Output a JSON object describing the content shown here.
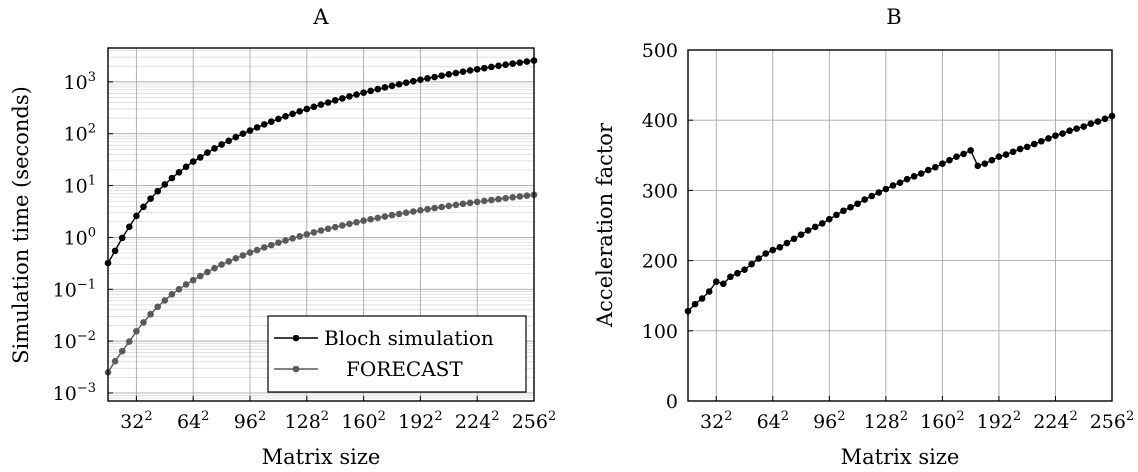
{
  "chart_data": [
    {
      "type": "line",
      "title": "A",
      "xlabel": "Matrix size",
      "ylabel": "Simulation time (seconds)",
      "yscale": "log",
      "ylim": [
        0.0007,
        4500
      ],
      "xlim": [
        16,
        256
      ],
      "grid": true,
      "legend_position": "bottom-right",
      "x_ticks": [
        {
          "value": 32,
          "base": "32",
          "exp": "2"
        },
        {
          "value": 64,
          "base": "64",
          "exp": "2"
        },
        {
          "value": 96,
          "base": "96",
          "exp": "2"
        },
        {
          "value": 128,
          "base": "128",
          "exp": "2"
        },
        {
          "value": 160,
          "base": "160",
          "exp": "2"
        },
        {
          "value": 192,
          "base": "192",
          "exp": "2"
        },
        {
          "value": 224,
          "base": "224",
          "exp": "2"
        },
        {
          "value": 256,
          "base": "256",
          "exp": "2"
        }
      ],
      "y_ticks": [
        {
          "value": 0.001,
          "base": "10",
          "exp": "−3"
        },
        {
          "value": 0.01,
          "base": "10",
          "exp": "−2"
        },
        {
          "value": 0.1,
          "base": "10",
          "exp": "−1"
        },
        {
          "value": 1,
          "base": "10",
          "exp": "0"
        },
        {
          "value": 10,
          "base": "10",
          "exp": "1"
        },
        {
          "value": 100,
          "base": "10",
          "exp": "2"
        },
        {
          "value": 1000,
          "base": "10",
          "exp": "3"
        }
      ],
      "series": [
        {
          "name": "Bloch simulation",
          "color": "#000000",
          "x": [
            16,
            20,
            24,
            28,
            32,
            36,
            40,
            44,
            48,
            52,
            56,
            60,
            64,
            68,
            72,
            76,
            80,
            84,
            88,
            92,
            96,
            100,
            104,
            108,
            112,
            116,
            120,
            124,
            128,
            132,
            136,
            140,
            144,
            148,
            152,
            156,
            160,
            164,
            168,
            172,
            176,
            180,
            184,
            188,
            192,
            196,
            200,
            204,
            208,
            212,
            216,
            220,
            224,
            228,
            232,
            236,
            240,
            244,
            248,
            252,
            256
          ],
          "y": [
            0.32,
            0.55,
            0.98,
            1.6,
            2.6,
            3.9,
            5.6,
            7.8,
            10.5,
            14,
            18,
            23,
            29,
            35,
            43,
            52,
            62,
            73,
            86,
            100,
            115,
            132,
            151,
            171,
            193,
            217,
            242,
            270,
            300,
            330,
            365,
            400,
            440,
            480,
            525,
            570,
            620,
            670,
            725,
            780,
            840,
            900,
            965,
            1030,
            1100,
            1170,
            1240,
            1320,
            1400,
            1480,
            1570,
            1660,
            1750,
            1840,
            1940,
            2040,
            2140,
            2250,
            2350,
            2460,
            2580
          ]
        },
        {
          "name": "FORECAST",
          "color": "#5a5a5a",
          "x": [
            16,
            20,
            24,
            28,
            32,
            36,
            40,
            44,
            48,
            52,
            56,
            60,
            64,
            68,
            72,
            76,
            80,
            84,
            88,
            92,
            96,
            100,
            104,
            108,
            112,
            116,
            120,
            124,
            128,
            132,
            136,
            140,
            144,
            148,
            152,
            156,
            160,
            164,
            168,
            172,
            176,
            180,
            184,
            188,
            192,
            196,
            200,
            204,
            208,
            212,
            216,
            220,
            224,
            228,
            232,
            236,
            240,
            244,
            248,
            252,
            256
          ],
          "y": [
            0.0025,
            0.0041,
            0.0064,
            0.0098,
            0.0155,
            0.023,
            0.033,
            0.046,
            0.061,
            0.08,
            0.1,
            0.124,
            0.15,
            0.18,
            0.215,
            0.255,
            0.3,
            0.345,
            0.395,
            0.45,
            0.51,
            0.57,
            0.64,
            0.71,
            0.79,
            0.87,
            0.96,
            1.05,
            1.15,
            1.25,
            1.36,
            1.47,
            1.58,
            1.7,
            1.83,
            1.96,
            2.1,
            2.24,
            2.38,
            2.53,
            2.68,
            2.84,
            3,
            3.16,
            3.33,
            3.5,
            3.68,
            3.86,
            4.05,
            4.24,
            4.44,
            4.64,
            4.84,
            5.05,
            5.26,
            5.48,
            5.7,
            5.93,
            6.16,
            6.4,
            6.65
          ]
        }
      ]
    },
    {
      "type": "line",
      "title": "B",
      "xlabel": "Matrix size",
      "ylabel": "Acceleration factor",
      "yscale": "linear",
      "ylim": [
        0,
        500
      ],
      "xlim": [
        16,
        256
      ],
      "grid": true,
      "x_ticks": [
        {
          "value": 32,
          "base": "32",
          "exp": "2"
        },
        {
          "value": 64,
          "base": "64",
          "exp": "2"
        },
        {
          "value": 96,
          "base": "96",
          "exp": "2"
        },
        {
          "value": 128,
          "base": "128",
          "exp": "2"
        },
        {
          "value": 160,
          "base": "160",
          "exp": "2"
        },
        {
          "value": 192,
          "base": "192",
          "exp": "2"
        },
        {
          "value": 224,
          "base": "224",
          "exp": "2"
        },
        {
          "value": 256,
          "base": "256",
          "exp": "2"
        }
      ],
      "y_ticks": [
        {
          "value": 0,
          "label": "0"
        },
        {
          "value": 100,
          "label": "100"
        },
        {
          "value": 200,
          "label": "200"
        },
        {
          "value": 300,
          "label": "300"
        },
        {
          "value": 400,
          "label": "400"
        },
        {
          "value": 500,
          "label": "500"
        }
      ],
      "series": [
        {
          "color": "#000000",
          "x": [
            16,
            20,
            24,
            28,
            32,
            36,
            40,
            44,
            48,
            52,
            56,
            60,
            64,
            68,
            72,
            76,
            80,
            84,
            88,
            92,
            96,
            100,
            104,
            108,
            112,
            116,
            120,
            124,
            128,
            132,
            136,
            140,
            144,
            148,
            152,
            156,
            160,
            164,
            168,
            172,
            176,
            180,
            184,
            188,
            192,
            196,
            200,
            204,
            208,
            212,
            216,
            220,
            224,
            228,
            232,
            236,
            240,
            244,
            248,
            252,
            256
          ],
          "y": [
            128,
            138,
            146,
            156,
            170,
            167,
            177,
            182,
            187,
            195,
            203,
            210,
            215,
            219,
            225,
            231,
            237,
            243,
            248,
            253,
            259,
            265,
            271,
            276,
            281,
            287,
            292,
            297,
            302,
            307,
            311,
            316,
            320,
            324,
            329,
            333,
            338,
            343,
            348,
            352,
            357,
            335,
            338,
            343,
            348,
            351,
            355,
            359,
            362,
            366,
            370,
            374,
            378,
            381,
            385,
            388,
            391,
            395,
            398,
            402,
            406
          ]
        }
      ]
    }
  ]
}
